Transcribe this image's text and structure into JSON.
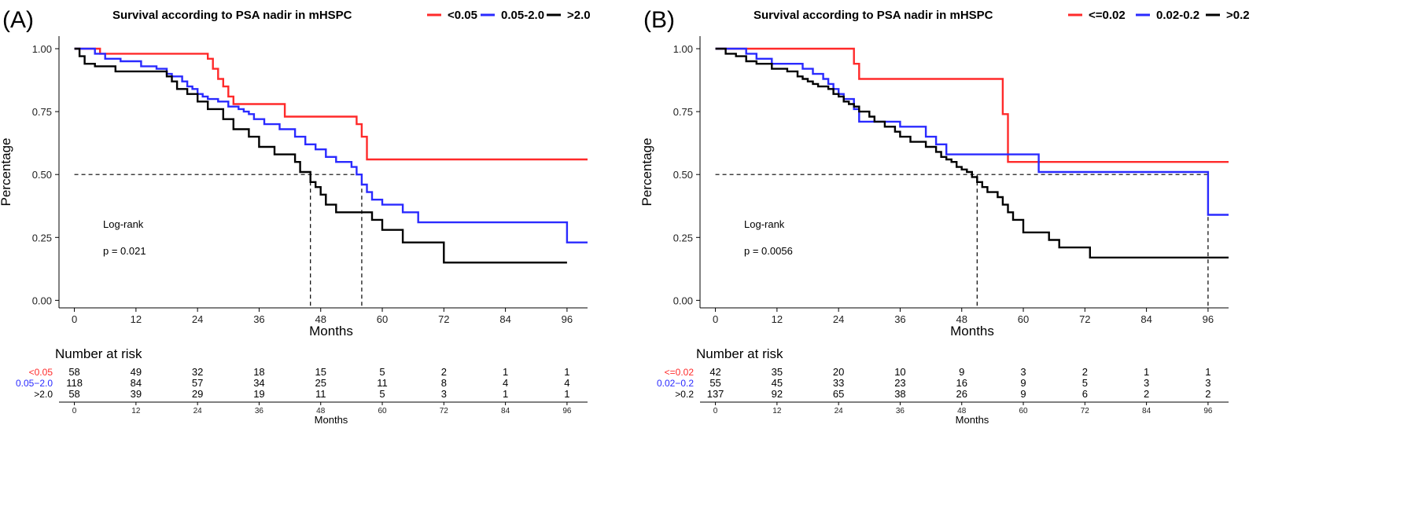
{
  "colors": {
    "red": "#ff2a2a",
    "blue": "#2a2aff",
    "black": "#000000"
  },
  "chart_data": [
    {
      "type": "line",
      "panel_label": "(A)",
      "title": "Survival according to PSA nadir in mHSPC",
      "legend_position": "top",
      "xlabel": "Months",
      "ylabel": "Percentage",
      "xlim": [
        -3,
        100
      ],
      "ylim": [
        -0.03,
        1.05
      ],
      "x_ticks": [
        "0",
        "12",
        "24",
        "36",
        "48",
        "60",
        "72",
        "84",
        "96"
      ],
      "y_ticks": [
        "0.00",
        "0.25",
        "0.50",
        "0.75",
        "1.00"
      ],
      "annotations": [
        "Log-rank",
        "p = 0.021"
      ],
      "median_line_y": 0.5,
      "median_markers": [
        46,
        56
      ],
      "series": [
        {
          "name": "<0.05",
          "color": "#ff2a2a",
          "steps": [
            [
              0,
              1.0
            ],
            [
              5,
              0.98
            ],
            [
              26,
              0.96
            ],
            [
              27,
              0.92
            ],
            [
              28,
              0.88
            ],
            [
              29,
              0.85
            ],
            [
              30,
              0.81
            ],
            [
              31,
              0.78
            ],
            [
              41,
              0.73
            ],
            [
              55,
              0.7
            ],
            [
              56,
              0.65
            ],
            [
              57,
              0.56
            ],
            [
              100,
              0.56
            ]
          ]
        },
        {
          "name": "0.05-2.0",
          "color": "#2a2aff",
          "steps": [
            [
              0,
              1.0
            ],
            [
              4,
              0.98
            ],
            [
              6,
              0.96
            ],
            [
              9,
              0.95
            ],
            [
              13,
              0.93
            ],
            [
              16,
              0.92
            ],
            [
              18,
              0.9
            ],
            [
              19,
              0.89
            ],
            [
              21,
              0.87
            ],
            [
              22,
              0.85
            ],
            [
              23,
              0.84
            ],
            [
              24,
              0.82
            ],
            [
              25,
              0.81
            ],
            [
              26,
              0.8
            ],
            [
              28,
              0.79
            ],
            [
              30,
              0.77
            ],
            [
              32,
              0.76
            ],
            [
              33,
              0.75
            ],
            [
              34,
              0.74
            ],
            [
              35,
              0.72
            ],
            [
              37,
              0.7
            ],
            [
              40,
              0.68
            ],
            [
              43,
              0.65
            ],
            [
              45,
              0.62
            ],
            [
              47,
              0.6
            ],
            [
              49,
              0.57
            ],
            [
              51,
              0.55
            ],
            [
              54,
              0.53
            ],
            [
              55,
              0.5
            ],
            [
              56,
              0.46
            ],
            [
              57,
              0.43
            ],
            [
              58,
              0.4
            ],
            [
              60,
              0.38
            ],
            [
              64,
              0.35
            ],
            [
              67,
              0.31
            ],
            [
              96,
              0.23
            ],
            [
              100,
              0.23
            ]
          ]
        },
        {
          "name": ">2.0",
          "color": "#000000",
          "steps": [
            [
              0,
              1.0
            ],
            [
              1,
              0.97
            ],
            [
              2,
              0.94
            ],
            [
              4,
              0.93
            ],
            [
              8,
              0.91
            ],
            [
              18,
              0.89
            ],
            [
              19,
              0.87
            ],
            [
              20,
              0.84
            ],
            [
              22,
              0.82
            ],
            [
              24,
              0.79
            ],
            [
              26,
              0.76
            ],
            [
              29,
              0.72
            ],
            [
              31,
              0.68
            ],
            [
              34,
              0.65
            ],
            [
              36,
              0.61
            ],
            [
              39,
              0.58
            ],
            [
              43,
              0.55
            ],
            [
              44,
              0.51
            ],
            [
              46,
              0.47
            ],
            [
              47,
              0.45
            ],
            [
              48,
              0.42
            ],
            [
              49,
              0.38
            ],
            [
              51,
              0.35
            ],
            [
              58,
              0.32
            ],
            [
              60,
              0.28
            ],
            [
              64,
              0.23
            ],
            [
              72,
              0.15
            ],
            [
              96,
              0.15
            ]
          ]
        }
      ],
      "risk_table": {
        "title": "Number at risk",
        "xlabel": "Months",
        "rows": [
          {
            "label": "<0.05",
            "color": "#ff2a2a",
            "values": [
              "58",
              "49",
              "32",
              "18",
              "15",
              "5",
              "2",
              "1",
              "1"
            ]
          },
          {
            "label": "0.05−2.0",
            "color": "#2a2aff",
            "values": [
              "118",
              "84",
              "57",
              "34",
              "25",
              "11",
              "8",
              "4",
              "4"
            ]
          },
          {
            "label": ">2.0",
            "color": "#000000",
            "values": [
              "58",
              "39",
              "29",
              "19",
              "11",
              "5",
              "3",
              "1",
              "1"
            ]
          }
        ]
      }
    },
    {
      "type": "line",
      "panel_label": "(B)",
      "title": "Survival according to PSA nadir in mHSPC",
      "legend_position": "top",
      "xlabel": "Months",
      "ylabel": "Percentage",
      "xlim": [
        -3,
        100
      ],
      "ylim": [
        -0.03,
        1.05
      ],
      "x_ticks": [
        "0",
        "12",
        "24",
        "36",
        "48",
        "60",
        "72",
        "84",
        "96"
      ],
      "y_ticks": [
        "0.00",
        "0.25",
        "0.50",
        "0.75",
        "1.00"
      ],
      "annotations": [
        "Log-rank",
        "p = 0.0056"
      ],
      "median_line_y": 0.5,
      "median_markers": [
        51,
        96
      ],
      "series": [
        {
          "name": "<=0.02",
          "color": "#ff2a2a",
          "steps": [
            [
              0,
              1.0
            ],
            [
              27,
              0.94
            ],
            [
              28,
              0.88
            ],
            [
              56,
              0.74
            ],
            [
              57,
              0.55
            ],
            [
              100,
              0.55
            ]
          ]
        },
        {
          "name": "0.02-0.2",
          "color": "#2a2aff",
          "steps": [
            [
              0,
              1.0
            ],
            [
              6,
              0.98
            ],
            [
              8,
              0.96
            ],
            [
              11,
              0.94
            ],
            [
              17,
              0.92
            ],
            [
              19,
              0.9
            ],
            [
              21,
              0.88
            ],
            [
              22,
              0.86
            ],
            [
              23,
              0.84
            ],
            [
              24,
              0.82
            ],
            [
              25,
              0.8
            ],
            [
              27,
              0.76
            ],
            [
              28,
              0.71
            ],
            [
              36,
              0.69
            ],
            [
              41,
              0.65
            ],
            [
              43,
              0.62
            ],
            [
              45,
              0.58
            ],
            [
              63,
              0.51
            ],
            [
              96,
              0.34
            ],
            [
              100,
              0.34
            ]
          ]
        },
        {
          "name": ">0.2",
          "color": "#000000",
          "steps": [
            [
              0,
              1.0
            ],
            [
              2,
              0.98
            ],
            [
              4,
              0.97
            ],
            [
              6,
              0.95
            ],
            [
              8,
              0.94
            ],
            [
              11,
              0.92
            ],
            [
              14,
              0.91
            ],
            [
              16,
              0.89
            ],
            [
              17,
              0.88
            ],
            [
              18,
              0.87
            ],
            [
              19,
              0.86
            ],
            [
              20,
              0.85
            ],
            [
              22,
              0.84
            ],
            [
              23,
              0.82
            ],
            [
              24,
              0.81
            ],
            [
              25,
              0.79
            ],
            [
              26,
              0.78
            ],
            [
              27,
              0.77
            ],
            [
              28,
              0.75
            ],
            [
              30,
              0.73
            ],
            [
              31,
              0.71
            ],
            [
              33,
              0.69
            ],
            [
              35,
              0.67
            ],
            [
              36,
              0.65
            ],
            [
              38,
              0.63
            ],
            [
              41,
              0.61
            ],
            [
              43,
              0.59
            ],
            [
              44,
              0.57
            ],
            [
              45,
              0.56
            ],
            [
              46,
              0.55
            ],
            [
              47,
              0.53
            ],
            [
              48,
              0.52
            ],
            [
              49,
              0.51
            ],
            [
              50,
              0.49
            ],
            [
              51,
              0.47
            ],
            [
              52,
              0.45
            ],
            [
              53,
              0.43
            ],
            [
              55,
              0.41
            ],
            [
              56,
              0.38
            ],
            [
              57,
              0.35
            ],
            [
              58,
              0.32
            ],
            [
              60,
              0.27
            ],
            [
              65,
              0.24
            ],
            [
              67,
              0.21
            ],
            [
              73,
              0.17
            ],
            [
              100,
              0.17
            ]
          ]
        }
      ],
      "risk_table": {
        "title": "Number at risk",
        "xlabel": "Months",
        "rows": [
          {
            "label": "<=0.02",
            "color": "#ff2a2a",
            "values": [
              "42",
              "35",
              "20",
              "10",
              "9",
              "3",
              "2",
              "1",
              "1"
            ]
          },
          {
            "label": "0.02−0.2",
            "color": "#2a2aff",
            "values": [
              "55",
              "45",
              "33",
              "23",
              "16",
              "9",
              "5",
              "3",
              "3"
            ]
          },
          {
            "label": ">0.2",
            "color": "#000000",
            "values": [
              "137",
              "92",
              "65",
              "38",
              "26",
              "9",
              "6",
              "2",
              "2"
            ]
          }
        ]
      }
    }
  ]
}
